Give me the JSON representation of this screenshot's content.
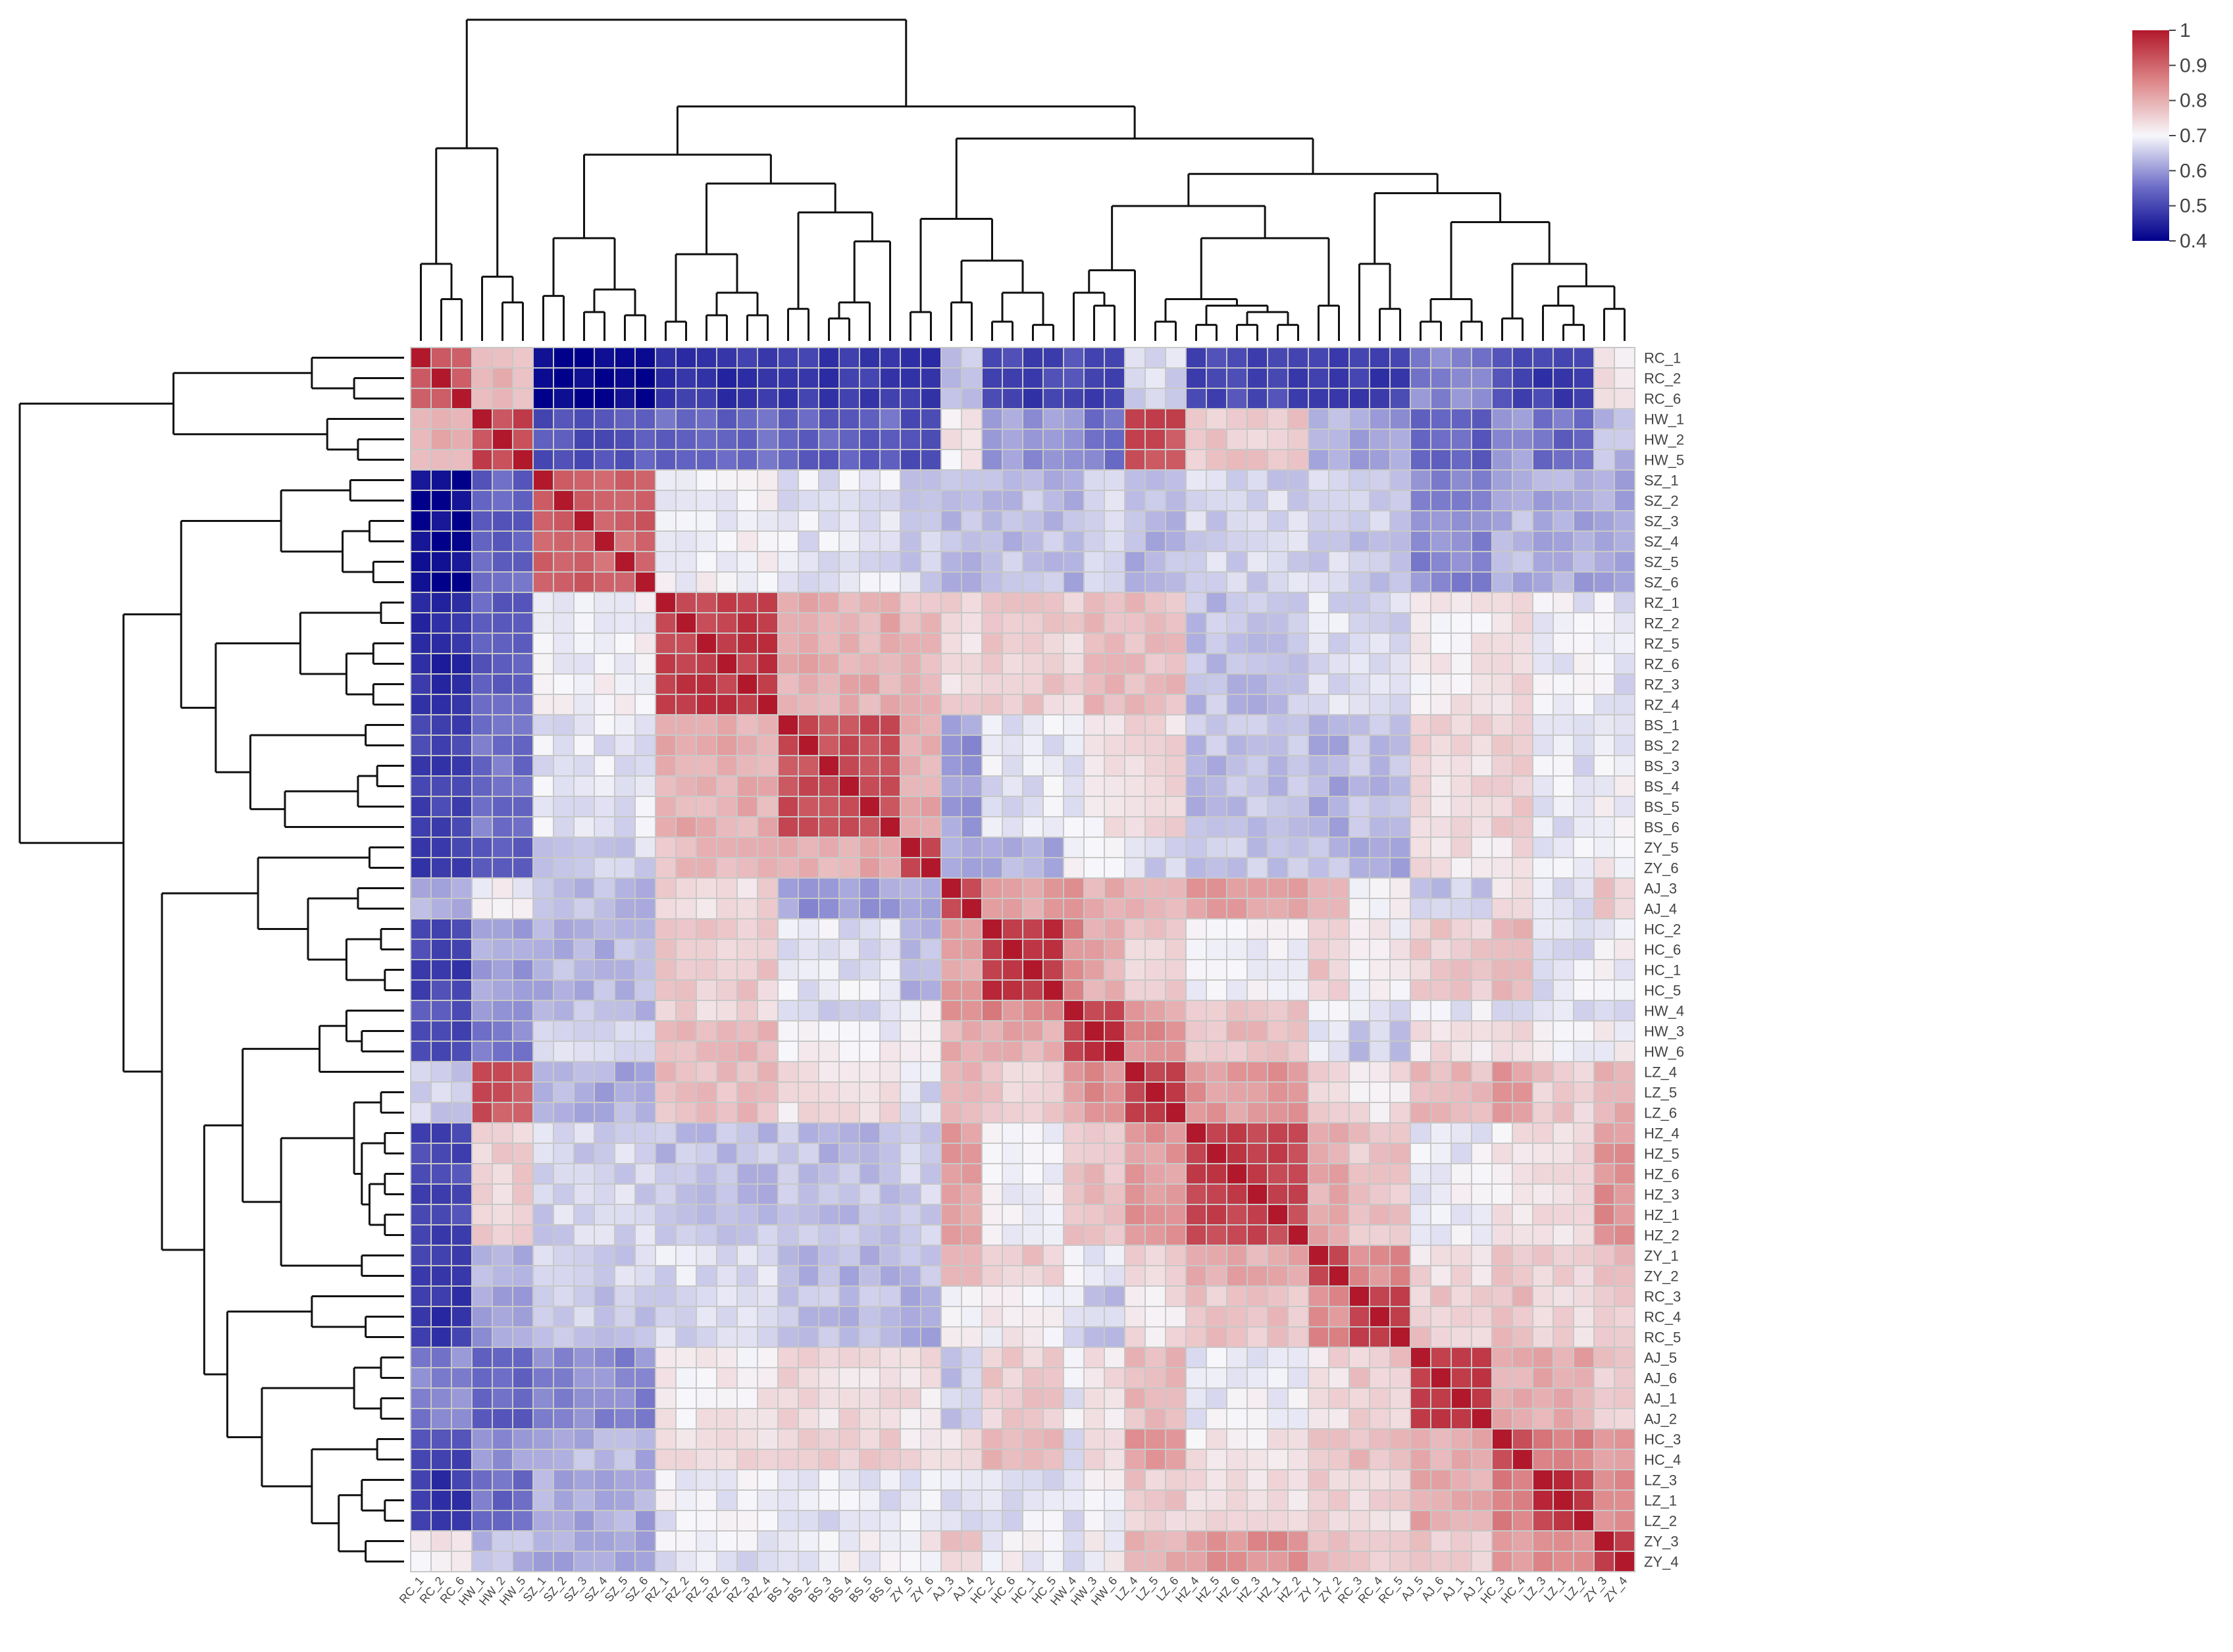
{
  "chart_data": {
    "type": "heatmap",
    "title": "",
    "clustered": true,
    "dendrograms": [
      "top",
      "left"
    ],
    "row_labels": [
      "RC_1",
      "RC_2",
      "RC_6",
      "HW_1",
      "HW_2",
      "HW_5",
      "SZ_1",
      "SZ_2",
      "SZ_3",
      "SZ_4",
      "SZ_5",
      "SZ_6",
      "RZ_1",
      "RZ_2",
      "RZ_5",
      "RZ_6",
      "RZ_3",
      "RZ_4",
      "BS_1",
      "BS_2",
      "BS_3",
      "BS_4",
      "BS_5",
      "BS_6",
      "ZY_5",
      "ZY_6",
      "AJ_3",
      "AJ_4",
      "HC_2",
      "HC_6",
      "HC_1",
      "HC_5",
      "HW_4",
      "HW_3",
      "HW_6",
      "LZ_4",
      "LZ_5",
      "LZ_6",
      "HZ_4",
      "HZ_5",
      "HZ_6",
      "HZ_3",
      "HZ_1",
      "HZ_2",
      "ZY_1",
      "ZY_2",
      "RC_3",
      "RC_4",
      "RC_5",
      "AJ_5",
      "AJ_6",
      "AJ_1",
      "AJ_2",
      "HC_3",
      "HC_4",
      "LZ_3",
      "LZ_1",
      "LZ_2",
      "ZY_3",
      "ZY_4"
    ],
    "col_labels": [
      "RC_1",
      "RC_2",
      "RC_6",
      "HW_1",
      "HW_2",
      "HW_5",
      "SZ_1",
      "SZ_2",
      "SZ_3",
      "SZ_4",
      "SZ_5",
      "SZ_6",
      "RZ_1",
      "RZ_2",
      "RZ_5",
      "RZ_6",
      "RZ_3",
      "RZ_4",
      "BS_1",
      "BS_2",
      "BS_3",
      "BS_4",
      "BS_5",
      "BS_6",
      "ZY_5",
      "ZY_6",
      "AJ_3",
      "AJ_4",
      "HC_2",
      "HC_6",
      "HC_1",
      "HC_5",
      "HW_4",
      "HW_3",
      "HW_6",
      "LZ_4",
      "LZ_5",
      "LZ_6",
      "HZ_4",
      "HZ_5",
      "HZ_6",
      "HZ_3",
      "HZ_1",
      "HZ_2",
      "ZY_1",
      "ZY_2",
      "RC_3",
      "RC_4",
      "RC_5",
      "AJ_5",
      "AJ_6",
      "AJ_1",
      "AJ_2",
      "HC_3",
      "HC_4",
      "LZ_3",
      "LZ_1",
      "LZ_2",
      "ZY_3",
      "ZY_4"
    ],
    "color_scale": {
      "min": 0.4,
      "max": 1,
      "stops": [
        {
          "value": 0.4,
          "color": "#00008b"
        },
        {
          "value": 0.55,
          "color": "#6a6ac6"
        },
        {
          "value": 0.7,
          "color": "#f7f7fb"
        },
        {
          "value": 0.85,
          "color": "#de8a8c"
        },
        {
          "value": 1.0,
          "color": "#b2182b"
        }
      ],
      "ticks": [
        "1",
        "0.9",
        "0.8",
        "0.7",
        "0.6",
        "0.5",
        "0.4"
      ],
      "tick_values": [
        1,
        0.9,
        0.8,
        0.7,
        0.6,
        0.5,
        0.4
      ]
    },
    "group_sizes": [
      3,
      3,
      6,
      6,
      6,
      2,
      2,
      4,
      1,
      2,
      3,
      6,
      2,
      3,
      4,
      2,
      3,
      2
    ],
    "group_similarity": [
      [
        0.93,
        0.79,
        0.4,
        0.47,
        0.48,
        0.47,
        0.64,
        0.49,
        0.51,
        0.49,
        0.67,
        0.5,
        0.49,
        0.49,
        0.58,
        0.5,
        0.49,
        0.73
      ],
      [
        0.8,
        0.94,
        0.52,
        0.54,
        0.54,
        0.52,
        0.72,
        0.6,
        0.58,
        0.56,
        0.93,
        0.76,
        0.63,
        0.61,
        0.54,
        0.6,
        0.55,
        0.64
      ],
      [
        0.41,
        0.54,
        0.9,
        0.7,
        0.68,
        0.66,
        0.64,
        0.64,
        0.63,
        0.66,
        0.63,
        0.66,
        0.66,
        0.65,
        0.58,
        0.63,
        0.62,
        0.61
      ],
      [
        0.46,
        0.53,
        0.7,
        0.95,
        0.8,
        0.78,
        0.74,
        0.76,
        0.75,
        0.79,
        0.78,
        0.64,
        0.67,
        0.66,
        0.72,
        0.74,
        0.69,
        0.68
      ],
      [
        0.49,
        0.56,
        0.68,
        0.8,
        0.93,
        0.8,
        0.6,
        0.68,
        0.68,
        0.72,
        0.74,
        0.64,
        0.62,
        0.64,
        0.74,
        0.76,
        0.68,
        0.69
      ],
      [
        0.48,
        0.54,
        0.66,
        0.78,
        0.8,
        0.94,
        0.61,
        0.62,
        0.7,
        0.71,
        0.66,
        0.65,
        0.64,
        0.62,
        0.73,
        0.73,
        0.69,
        0.71
      ],
      [
        0.62,
        0.7,
        0.64,
        0.74,
        0.6,
        0.61,
        0.95,
        0.82,
        0.82,
        0.8,
        0.8,
        0.82,
        0.78,
        0.7,
        0.65,
        0.72,
        0.67,
        0.76
      ],
      [
        0.49,
        0.61,
        0.63,
        0.76,
        0.68,
        0.63,
        0.82,
        0.96,
        0.85,
        0.8,
        0.76,
        0.69,
        0.76,
        0.71,
        0.76,
        0.8,
        0.68,
        0.7
      ],
      [
        0.52,
        0.58,
        0.64,
        0.75,
        0.66,
        0.7,
        0.82,
        0.85,
        0.96,
        0.92,
        0.82,
        0.77,
        0.71,
        0.67,
        0.68,
        0.67,
        0.68,
        0.68
      ],
      [
        0.5,
        0.57,
        0.66,
        0.79,
        0.7,
        0.72,
        0.8,
        0.8,
        0.92,
        0.96,
        0.84,
        0.78,
        0.68,
        0.65,
        0.73,
        0.73,
        0.7,
        0.7
      ],
      [
        0.66,
        0.92,
        0.62,
        0.78,
        0.73,
        0.67,
        0.8,
        0.76,
        0.82,
        0.84,
        0.95,
        0.83,
        0.75,
        0.73,
        0.78,
        0.83,
        0.76,
        0.8
      ],
      [
        0.5,
        0.75,
        0.66,
        0.64,
        0.64,
        0.66,
        0.82,
        0.69,
        0.77,
        0.78,
        0.83,
        0.94,
        0.8,
        0.77,
        0.69,
        0.72,
        0.74,
        0.84
      ],
      [
        0.49,
        0.63,
        0.66,
        0.67,
        0.63,
        0.64,
        0.78,
        0.76,
        0.71,
        0.68,
        0.75,
        0.8,
        0.94,
        0.85,
        0.74,
        0.78,
        0.76,
        0.79
      ],
      [
        0.48,
        0.61,
        0.65,
        0.66,
        0.64,
        0.62,
        0.7,
        0.71,
        0.67,
        0.65,
        0.73,
        0.77,
        0.85,
        0.96,
        0.76,
        0.78,
        0.74,
        0.77
      ],
      [
        0.58,
        0.54,
        0.58,
        0.72,
        0.74,
        0.73,
        0.65,
        0.76,
        0.68,
        0.73,
        0.78,
        0.69,
        0.74,
        0.76,
        0.95,
        0.8,
        0.81,
        0.76
      ],
      [
        0.5,
        0.6,
        0.63,
        0.74,
        0.76,
        0.73,
        0.72,
        0.8,
        0.67,
        0.73,
        0.83,
        0.72,
        0.78,
        0.78,
        0.8,
        0.95,
        0.87,
        0.82
      ],
      [
        0.48,
        0.55,
        0.62,
        0.69,
        0.68,
        0.69,
        0.67,
        0.68,
        0.68,
        0.7,
        0.76,
        0.74,
        0.76,
        0.74,
        0.81,
        0.87,
        0.96,
        0.84
      ],
      [
        0.72,
        0.64,
        0.61,
        0.68,
        0.69,
        0.71,
        0.76,
        0.7,
        0.68,
        0.7,
        0.8,
        0.84,
        0.79,
        0.77,
        0.76,
        0.82,
        0.84,
        0.95
      ]
    ]
  }
}
